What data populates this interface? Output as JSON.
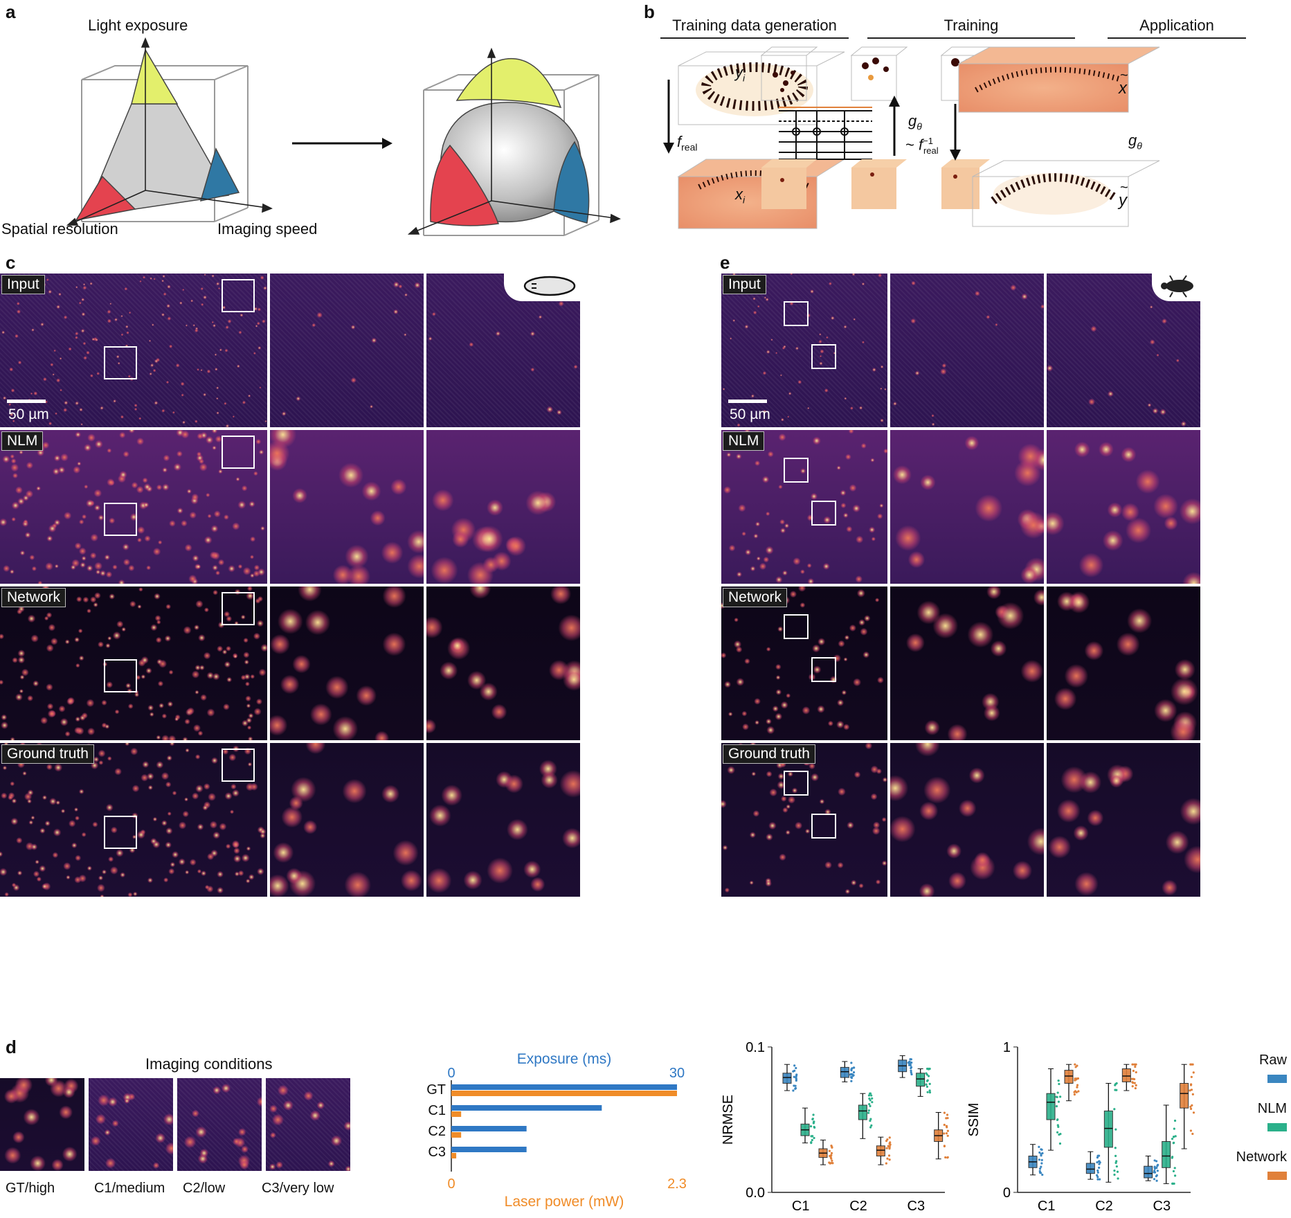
{
  "panels": {
    "a": "a",
    "b": "b",
    "c": "c",
    "d": "d",
    "e": "e"
  },
  "panel_a": {
    "axis_light": "Light exposure",
    "axis_spatial": "Spatial resolution",
    "axis_speed": "Imaging speed"
  },
  "panel_b": {
    "gen_header": "Training data generation",
    "train_header": "Training",
    "app_header": "Application",
    "f_real": "f",
    "f_real_sub": "real",
    "y_i": "y",
    "x_i": "x",
    "i_sub": "i",
    "g_theta": "g",
    "theta_sub": "θ",
    "tilde": "~",
    "x_tilde": "x",
    "y_tilde": "y"
  },
  "panel_c": {
    "rows": [
      "Input",
      "NLM",
      "Network",
      "Ground truth"
    ],
    "scalebar": "50 µm",
    "organism_icon": "flatworm-icon"
  },
  "panel_e": {
    "rows": [
      "Input",
      "NLM",
      "Network",
      "Ground truth"
    ],
    "scalebar": "50 µm",
    "organism_icon": "beetle-icon"
  },
  "panel_d": {
    "title": "Imaging conditions",
    "thumb_labels": [
      "GT/high",
      "C1/medium",
      "C2/low",
      "C3/very low"
    ]
  },
  "colors": {
    "raw": "#3a86c0",
    "nlm": "#2bb08a",
    "network": "#e0803a",
    "exposure": "#2f78c4",
    "laser": "#f08c28"
  },
  "chart_data": [
    {
      "type": "bar",
      "orientation": "horizontal",
      "categories": [
        "GT",
        "C1",
        "C2",
        "C3"
      ],
      "series": [
        {
          "name": "Exposure (ms)",
          "values": [
            30,
            20,
            10,
            10
          ],
          "axis": "top",
          "range": [
            0,
            30
          ]
        },
        {
          "name": "Laser power (mW)",
          "values": [
            2.3,
            0.1,
            0.1,
            0.05
          ],
          "axis": "bottom",
          "range": [
            0,
            2.3
          ]
        }
      ],
      "top_ticks": [
        "0",
        "30"
      ],
      "bottom_ticks": [
        "0",
        "2.3"
      ],
      "xlabel_top": "Exposure (ms)",
      "xlabel_bottom": "Laser power (mW)"
    },
    {
      "type": "box",
      "ylabel": "NRMSE",
      "ylim": [
        0.0,
        0.1
      ],
      "yticks": [
        "0.0",
        "0.1"
      ],
      "categories": [
        "C1",
        "C2",
        "C3"
      ],
      "series": [
        {
          "name": "Raw",
          "medians": [
            0.079,
            0.083,
            0.087
          ],
          "q1": [
            0.075,
            0.079,
            0.083
          ],
          "q3": [
            0.082,
            0.086,
            0.091
          ],
          "min": [
            0.07,
            0.076,
            0.079
          ],
          "max": [
            0.088,
            0.09,
            0.094
          ]
        },
        {
          "name": "NLM",
          "medians": [
            0.043,
            0.056,
            0.078
          ],
          "q1": [
            0.039,
            0.05,
            0.073
          ],
          "q3": [
            0.047,
            0.06,
            0.082
          ],
          "min": [
            0.034,
            0.037,
            0.066
          ],
          "max": [
            0.058,
            0.068,
            0.085
          ]
        },
        {
          "name": "Network",
          "medians": [
            0.027,
            0.029,
            0.039
          ],
          "q1": [
            0.024,
            0.025,
            0.035
          ],
          "q3": [
            0.03,
            0.032,
            0.043
          ],
          "min": [
            0.019,
            0.019,
            0.023
          ],
          "max": [
            0.036,
            0.038,
            0.055
          ]
        }
      ]
    },
    {
      "type": "box",
      "ylabel": "SSIM",
      "ylim": [
        0,
        1
      ],
      "yticks": [
        "0",
        "1"
      ],
      "categories": [
        "C1",
        "C2",
        "C3"
      ],
      "series": [
        {
          "name": "Raw",
          "medians": [
            0.21,
            0.16,
            0.13
          ],
          "q1": [
            0.17,
            0.13,
            0.1
          ],
          "q3": [
            0.25,
            0.2,
            0.18
          ],
          "min": [
            0.12,
            0.09,
            0.08
          ],
          "max": [
            0.33,
            0.28,
            0.25
          ]
        },
        {
          "name": "NLM",
          "medians": [
            0.62,
            0.44,
            0.25
          ],
          "q1": [
            0.5,
            0.31,
            0.17
          ],
          "q3": [
            0.68,
            0.56,
            0.35
          ],
          "min": [
            0.29,
            0.07,
            0.06
          ],
          "max": [
            0.85,
            0.75,
            0.6
          ]
        },
        {
          "name": "Network",
          "medians": [
            0.8,
            0.8,
            0.68
          ],
          "q1": [
            0.75,
            0.76,
            0.58
          ],
          "q3": [
            0.84,
            0.85,
            0.75
          ],
          "min": [
            0.63,
            0.7,
            0.3
          ],
          "max": [
            0.88,
            0.88,
            0.88
          ]
        }
      ]
    }
  ],
  "legend": [
    "Raw",
    "NLM",
    "Network"
  ]
}
